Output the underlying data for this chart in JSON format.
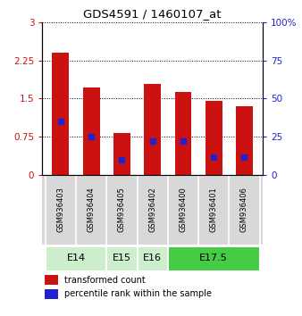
{
  "title": "GDS4591 / 1460107_at",
  "samples": [
    "GSM936403",
    "GSM936404",
    "GSM936405",
    "GSM936402",
    "GSM936400",
    "GSM936401",
    "GSM936406"
  ],
  "transformed_count": [
    2.4,
    1.72,
    0.82,
    1.78,
    1.63,
    1.45,
    1.35
  ],
  "percentile_rank_pct": [
    35,
    25,
    10,
    22,
    22,
    12,
    12
  ],
  "ylim_left": [
    0,
    3
  ],
  "ylim_right": [
    0,
    100
  ],
  "yticks_left": [
    0,
    0.75,
    1.5,
    2.25,
    3
  ],
  "ytick_labels_left": [
    "0",
    "0.75",
    "1.5",
    "2.25",
    "3"
  ],
  "yticks_right": [
    0,
    25,
    50,
    75,
    100
  ],
  "ytick_labels_right": [
    "0",
    "25",
    "50",
    "75",
    "100%"
  ],
  "bar_color": "#cc1111",
  "dot_color": "#2222cc",
  "bar_width": 0.55,
  "background_color": "#ffffff",
  "label_transformed": "transformed count",
  "label_percentile": "percentile rank within the sample",
  "age_defs": [
    {
      "start": 0,
      "end": 1,
      "label": "E14",
      "color": "#cceecc"
    },
    {
      "start": 2,
      "end": 2,
      "label": "E15",
      "color": "#cceecc"
    },
    {
      "start": 3,
      "end": 3,
      "label": "E16",
      "color": "#cceecc"
    },
    {
      "start": 4,
      "end": 6,
      "label": "E17.5",
      "color": "#44cc44"
    }
  ]
}
